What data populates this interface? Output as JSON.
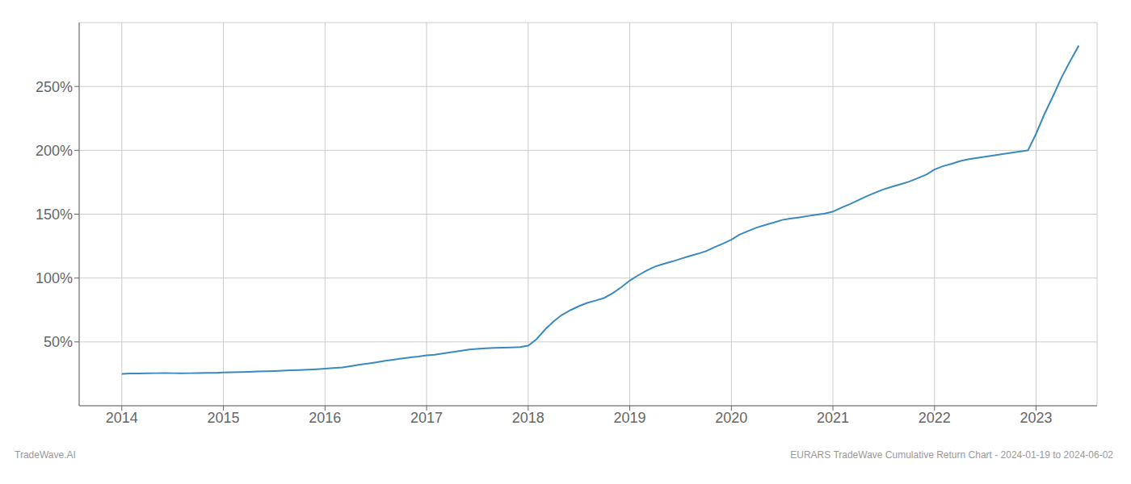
{
  "chart_data": {
    "type": "line",
    "annotations": [
      "TradeWave.AI",
      "EURARS TradeWave Cumulative Return Chart - 2024-01-19 to 2024-06-02"
    ],
    "x": [
      2014.0,
      2014.08,
      2014.17,
      2014.25,
      2014.33,
      2014.42,
      2014.5,
      2014.58,
      2014.67,
      2014.75,
      2014.83,
      2014.92,
      2015.0,
      2015.08,
      2015.17,
      2015.25,
      2015.33,
      2015.42,
      2015.5,
      2015.58,
      2015.67,
      2015.75,
      2015.83,
      2015.92,
      2016.0,
      2016.08,
      2016.17,
      2016.25,
      2016.33,
      2016.42,
      2016.5,
      2016.58,
      2016.67,
      2016.75,
      2016.83,
      2016.92,
      2017.0,
      2017.08,
      2017.17,
      2017.25,
      2017.33,
      2017.42,
      2017.5,
      2017.58,
      2017.67,
      2017.75,
      2017.83,
      2017.92,
      2018.0,
      2018.08,
      2018.17,
      2018.25,
      2018.33,
      2018.42,
      2018.5,
      2018.58,
      2018.67,
      2018.75,
      2018.83,
      2018.92,
      2019.0,
      2019.08,
      2019.17,
      2019.25,
      2019.33,
      2019.42,
      2019.5,
      2019.58,
      2019.67,
      2019.75,
      2019.83,
      2019.92,
      2020.0,
      2020.08,
      2020.17,
      2020.25,
      2020.33,
      2020.42,
      2020.5,
      2020.58,
      2020.67,
      2020.75,
      2020.83,
      2020.92,
      2021.0,
      2021.08,
      2021.17,
      2021.25,
      2021.33,
      2021.42,
      2021.5,
      2021.58,
      2021.67,
      2021.75,
      2021.83,
      2021.92,
      2022.0,
      2022.08,
      2022.17,
      2022.25,
      2022.33,
      2022.42,
      2022.5,
      2022.58,
      2022.67,
      2022.75,
      2022.83,
      2022.92,
      2023.0,
      2023.08,
      2023.17,
      2023.25,
      2023.33,
      2023.42
    ],
    "values": [
      25.0,
      25.2,
      25.3,
      25.4,
      25.5,
      25.6,
      25.5,
      25.4,
      25.5,
      25.6,
      25.7,
      25.8,
      26.0,
      26.2,
      26.4,
      26.6,
      26.8,
      27.0,
      27.2,
      27.5,
      27.8,
      28.0,
      28.3,
      28.6,
      29.0,
      29.5,
      30.0,
      31.0,
      32.0,
      33.0,
      34.0,
      35.0,
      36.0,
      37.0,
      37.8,
      38.5,
      39.5,
      40.0,
      41.0,
      42.0,
      43.0,
      44.0,
      44.5,
      45.0,
      45.3,
      45.5,
      45.7,
      45.9,
      47.0,
      52.0,
      60.0,
      66.0,
      71.0,
      75.0,
      78.0,
      80.5,
      82.5,
      84.5,
      88.0,
      93.0,
      98.0,
      102.0,
      106.0,
      109.0,
      111.0,
      113.0,
      115.0,
      117.0,
      119.0,
      121.0,
      124.0,
      127.0,
      130.0,
      134.0,
      137.0,
      139.5,
      141.5,
      143.5,
      145.5,
      146.5,
      147.5,
      148.5,
      149.5,
      150.5,
      152.0,
      155.0,
      158.0,
      161.0,
      164.0,
      167.0,
      169.5,
      171.5,
      173.5,
      175.5,
      178.0,
      181.0,
      185.0,
      187.5,
      189.5,
      191.5,
      193.0,
      194.0,
      195.0,
      196.0,
      197.0,
      198.0,
      199.0,
      200.0,
      213.0,
      228.0,
      243.0,
      257.0,
      269.0,
      282.0
    ],
    "color": "#3a8abf",
    "xlim": [
      2013.58,
      2023.6
    ],
    "xticks": [
      2014,
      2015,
      2016,
      2017,
      2018,
      2019,
      2020,
      2021,
      2022,
      2023
    ],
    "ylim": [
      0,
      300
    ],
    "yticks": [
      {
        "value": 50,
        "label": "50%"
      },
      {
        "value": 100,
        "label": "100%"
      },
      {
        "value": 150,
        "label": "150%"
      },
      {
        "value": 200,
        "label": "200%"
      },
      {
        "value": 250,
        "label": "250%"
      }
    ],
    "grid": true
  }
}
